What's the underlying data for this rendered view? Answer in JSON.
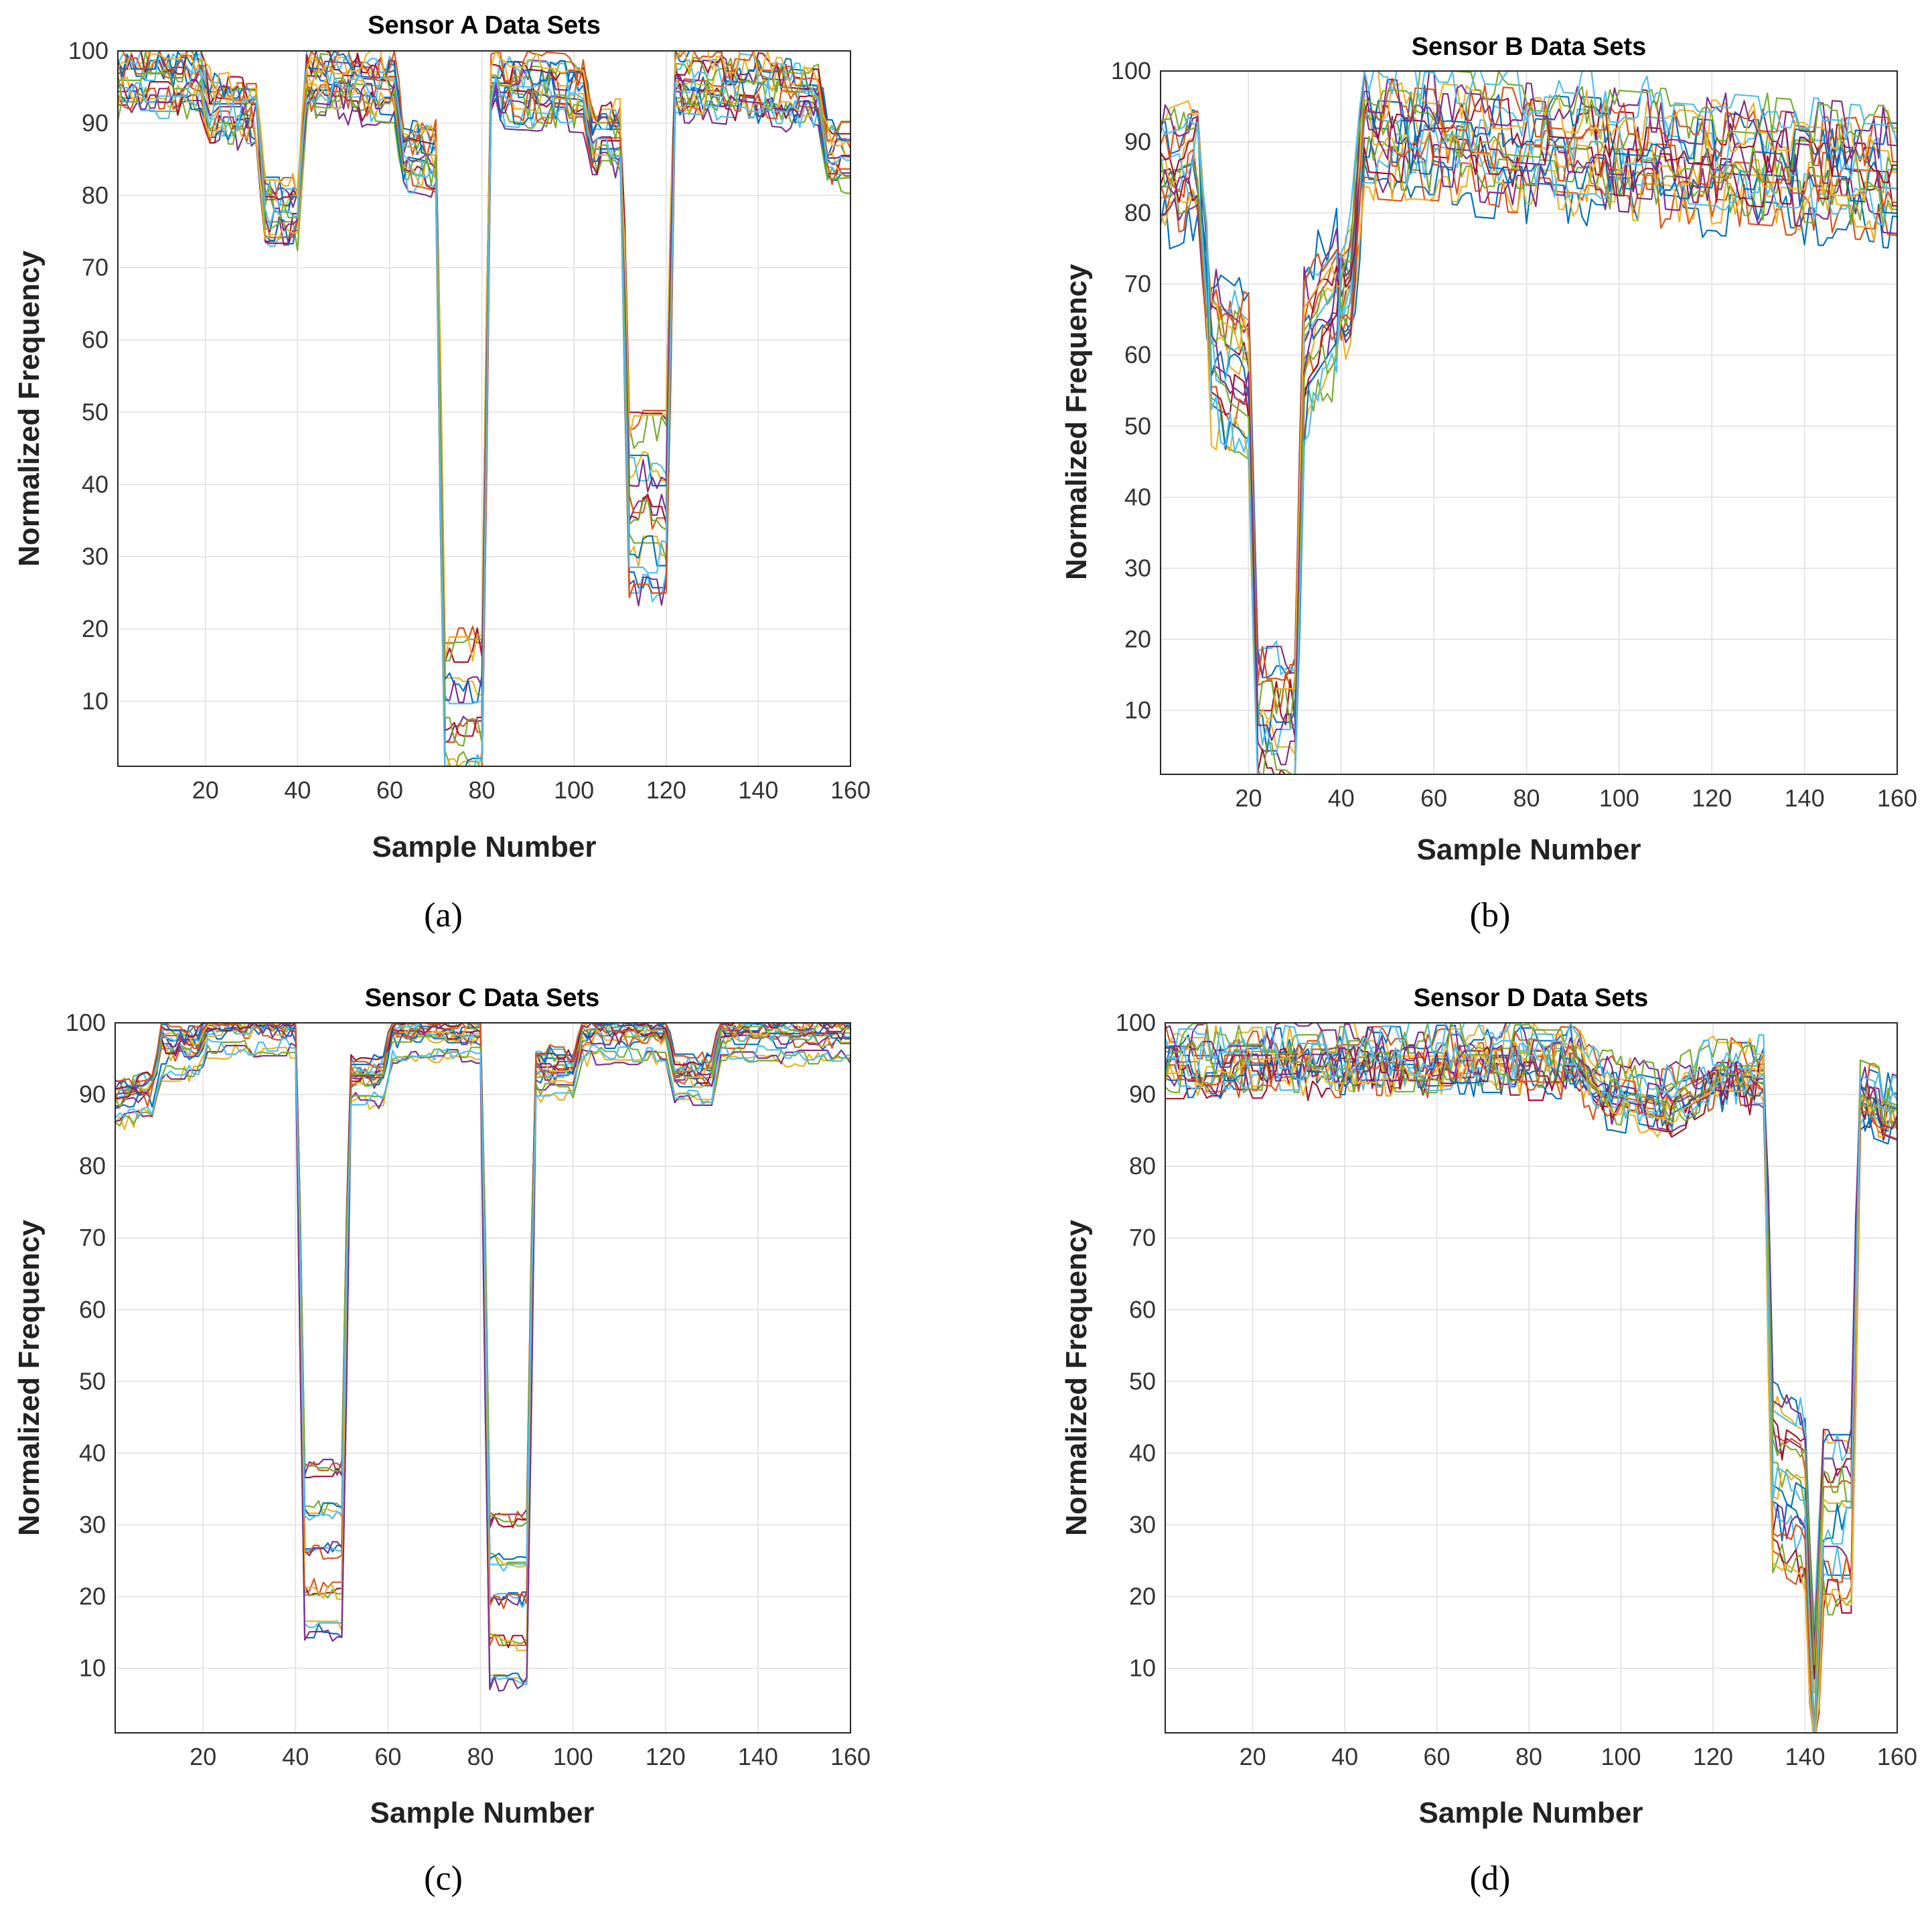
{
  "figure": {
    "captions": [
      "(a)",
      "(b)",
      "(c)",
      "(d)"
    ]
  },
  "palette": [
    "#0072BD",
    "#D95319",
    "#EDB120",
    "#7E2F8E",
    "#77AC30",
    "#4DBEEE",
    "#A2142F"
  ],
  "chart_data": [
    {
      "type": "line",
      "panel": "a",
      "title": "Sensor A Data Sets",
      "xlabel": "Sample Number",
      "ylabel": "Normalized Frequency",
      "xlim": [
        1,
        160
      ],
      "ylim": [
        1,
        100
      ],
      "xticks": [
        20,
        40,
        60,
        80,
        100,
        120,
        140,
        160
      ],
      "yticks": [
        10,
        20,
        30,
        40,
        50,
        60,
        70,
        80,
        90,
        100
      ],
      "grid": true,
      "n_series": 20,
      "profile": [
        [
          1,
          96
        ],
        [
          19,
          96
        ],
        [
          21,
          92
        ],
        [
          31,
          92
        ],
        [
          33,
          78
        ],
        [
          40,
          78
        ],
        [
          42,
          96
        ],
        [
          61,
          95
        ],
        [
          63,
          86
        ],
        [
          70,
          85
        ],
        [
          72,
          5
        ],
        [
          80,
          5
        ],
        [
          82,
          95
        ],
        [
          102,
          94
        ],
        [
          104,
          88
        ],
        [
          110,
          88
        ],
        [
          112,
          35
        ],
        [
          120,
          35
        ],
        [
          122,
          96
        ],
        [
          153,
          94
        ],
        [
          155,
          86
        ],
        [
          160,
          86
        ]
      ],
      "spread": 3.5,
      "noise": 2.5,
      "dip_spread": 14
    },
    {
      "type": "line",
      "panel": "b",
      "title": "Sensor B Data Sets",
      "xlabel": "Sample Number",
      "ylabel": "Normalized Frequency",
      "xlim": [
        1,
        160
      ],
      "ylim": [
        1,
        100
      ],
      "xticks": [
        20,
        40,
        60,
        80,
        100,
        120,
        140,
        160
      ],
      "yticks": [
        10,
        20,
        30,
        40,
        50,
        60,
        70,
        80,
        90,
        100
      ],
      "grid": true,
      "n_series": 20,
      "profile": [
        [
          1,
          88
        ],
        [
          9,
          90
        ],
        [
          12,
          62
        ],
        [
          20,
          58
        ],
        [
          22,
          8
        ],
        [
          30,
          8
        ],
        [
          32,
          62
        ],
        [
          42,
          72
        ],
        [
          45,
          94
        ],
        [
          160,
          88
        ]
      ],
      "spread": 10,
      "noise": 4,
      "dip_spread": 12
    },
    {
      "type": "line",
      "panel": "c",
      "title": "Sensor C Data Sets",
      "xlabel": "Sample Number",
      "ylabel": "Normalized Frequency",
      "xlim": [
        1,
        160
      ],
      "ylim": [
        1,
        100
      ],
      "xticks": [
        20,
        40,
        60,
        80,
        100,
        120,
        140,
        160
      ],
      "yticks": [
        10,
        20,
        30,
        40,
        50,
        60,
        70,
        80,
        90,
        100
      ],
      "grid": true,
      "n_series": 20,
      "profile": [
        [
          1,
          89
        ],
        [
          9,
          90
        ],
        [
          11,
          96
        ],
        [
          19,
          96
        ],
        [
          21,
          99
        ],
        [
          40,
          99
        ],
        [
          42,
          25
        ],
        [
          50,
          25
        ],
        [
          52,
          92
        ],
        [
          59,
          92
        ],
        [
          61,
          98
        ],
        [
          80,
          98
        ],
        [
          82,
          18
        ],
        [
          90,
          18
        ],
        [
          92,
          93
        ],
        [
          100,
          93
        ],
        [
          102,
          98
        ],
        [
          120,
          98
        ],
        [
          122,
          92
        ],
        [
          130,
          92
        ],
        [
          132,
          98
        ],
        [
          160,
          98
        ]
      ],
      "spread": 3,
      "noise": 1.2,
      "dip_spread": 14
    },
    {
      "type": "line",
      "panel": "d",
      "title": "Sensor D Data Sets",
      "xlabel": "Sample Number",
      "ylabel": "Normalized Frequency",
      "xlim": [
        1,
        160
      ],
      "ylim": [
        1,
        100
      ],
      "xticks": [
        20,
        40,
        60,
        80,
        100,
        120,
        140,
        160
      ],
      "yticks": [
        10,
        20,
        30,
        40,
        50,
        60,
        70,
        80,
        90,
        100
      ],
      "grid": true,
      "n_series": 20,
      "profile": [
        [
          1,
          95
        ],
        [
          90,
          95
        ],
        [
          95,
          91
        ],
        [
          110,
          89
        ],
        [
          120,
          93
        ],
        [
          131,
          93
        ],
        [
          133,
          38
        ],
        [
          140,
          35
        ],
        [
          142,
          5
        ],
        [
          144,
          32
        ],
        [
          150,
          32
        ],
        [
          152,
          90
        ],
        [
          160,
          88
        ]
      ],
      "spread": 3,
      "noise": 3,
      "dip_spread": 14
    }
  ]
}
